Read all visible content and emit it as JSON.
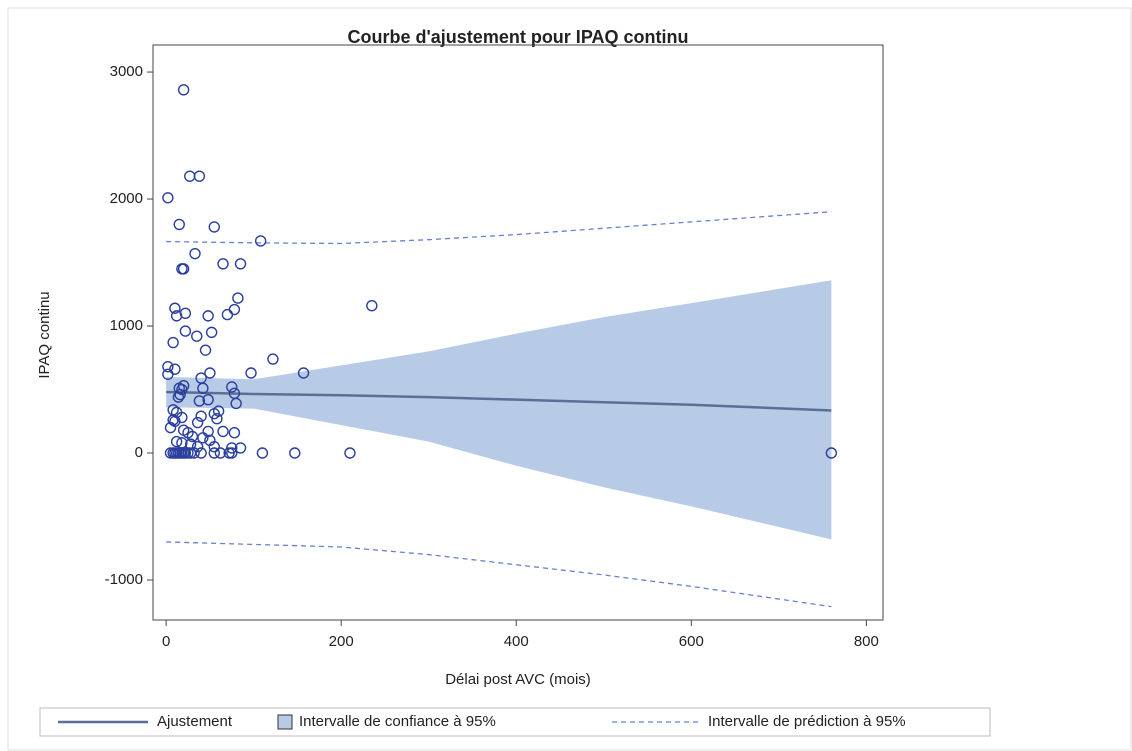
{
  "chart_data": {
    "type": "scatter",
    "title": "Courbe d'ajustement pour IPAQ continu",
    "xlabel": "Délai post AVC (mois)",
    "ylabel": "IPAQ continu",
    "xlim": [
      -15,
      819
    ],
    "ylim": [
      -1315,
      3213
    ],
    "xticks": [
      0,
      200,
      400,
      600,
      800
    ],
    "yticks": [
      -1000,
      0,
      1000,
      2000,
      3000
    ],
    "points": {
      "color": "#2a3f9e",
      "x": [
        20,
        2,
        27,
        38,
        15,
        55,
        33,
        18,
        20,
        65,
        85,
        108,
        82,
        10,
        12,
        22,
        48,
        70,
        78,
        235,
        22,
        35,
        52,
        8,
        45,
        122,
        2,
        10,
        2,
        97,
        157,
        50,
        40,
        15,
        18,
        20,
        75,
        78,
        42,
        14,
        16,
        48,
        80,
        38,
        8,
        12,
        60,
        55,
        18,
        8,
        10,
        40,
        58,
        36,
        5,
        20,
        25,
        48,
        65,
        78,
        30,
        42,
        50,
        12,
        18,
        28,
        36,
        55,
        75,
        85,
        5,
        8,
        10,
        12,
        14,
        16,
        18,
        20,
        22,
        25,
        28,
        32,
        40,
        55,
        62,
        72,
        75,
        110,
        147,
        210,
        760
      ],
      "y": [
        2860,
        2010,
        2180,
        2180,
        1800,
        1780,
        1570,
        1450,
        1450,
        1490,
        1490,
        1670,
        1220,
        1140,
        1080,
        1100,
        1080,
        1090,
        1130,
        1160,
        960,
        920,
        950,
        870,
        810,
        740,
        680,
        660,
        620,
        630,
        630,
        630,
        590,
        510,
        500,
        530,
        520,
        470,
        510,
        440,
        460,
        420,
        390,
        410,
        340,
        320,
        330,
        310,
        280,
        260,
        250,
        290,
        270,
        240,
        200,
        180,
        160,
        170,
        170,
        160,
        130,
        120,
        100,
        90,
        80,
        70,
        50,
        50,
        40,
        40,
        0,
        0,
        0,
        0,
        0,
        0,
        0,
        0,
        0,
        0,
        0,
        0,
        0,
        0,
        0,
        0,
        0,
        0,
        0,
        0,
        0
      ]
    },
    "fit_x": [
      0,
      100,
      200,
      300,
      400,
      500,
      600,
      760
    ],
    "fit": {
      "name": "Ajustement",
      "color": "#5b6f95",
      "values": [
        480,
        465,
        455,
        440,
        420,
        400,
        380,
        335
      ]
    },
    "confidence": {
      "name": "Intervalle de confiance à 95%",
      "color": "#b7cbe6",
      "upper": [
        600,
        580,
        690,
        800,
        940,
        1070,
        1180,
        1360
      ],
      "lower": [
        360,
        350,
        220,
        90,
        -100,
        -270,
        -420,
        -680
      ]
    },
    "prediction": {
      "name": "Intervalle de prédiction à 95%",
      "color": "#6a7fd0",
      "upper": [
        1665,
        1655,
        1650,
        1680,
        1720,
        1770,
        1820,
        1900
      ],
      "lower": [
        -700,
        -720,
        -740,
        -800,
        -880,
        -960,
        -1050,
        -1210
      ]
    }
  }
}
